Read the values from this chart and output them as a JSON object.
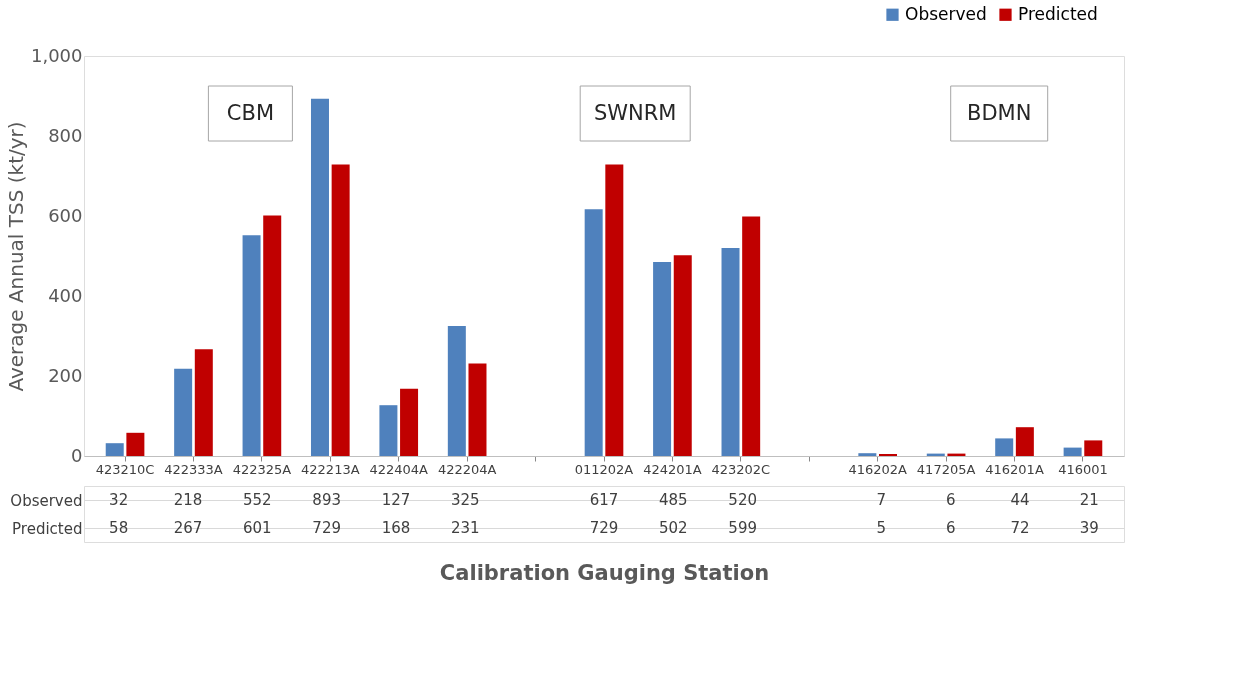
{
  "chart_data": {
    "type": "bar",
    "categories": [
      "423210C",
      "422333A",
      "422325A",
      "422213A",
      "422404A",
      "422204A",
      null,
      "011202A",
      "424201A",
      "423202C",
      null,
      "416202A",
      "417205A",
      "416201A",
      "416001"
    ],
    "series": [
      {
        "name": "Observed",
        "color": "#4f81bd",
        "values": [
          32,
          218,
          552,
          893,
          127,
          325,
          null,
          617,
          485,
          520,
          null,
          7,
          6,
          44,
          21
        ]
      },
      {
        "name": "Predicted",
        "color": "#c00000",
        "values": [
          58,
          267,
          601,
          729,
          168,
          231,
          null,
          729,
          502,
          599,
          null,
          5,
          6,
          72,
          39
        ]
      }
    ],
    "ylabel": "Average Annual TSS (kt/yr)",
    "xlabel": "Calibration Gauging Station",
    "ylim": [
      0,
      1000
    ],
    "yticks": [
      0,
      200,
      400,
      600,
      800,
      {
        "value": 1000,
        "label": "1,000"
      }
    ],
    "annotations": [
      "CBM",
      "SWNRM",
      "BDMN"
    ],
    "data_labels": true,
    "grid": false,
    "legend": "top right"
  }
}
